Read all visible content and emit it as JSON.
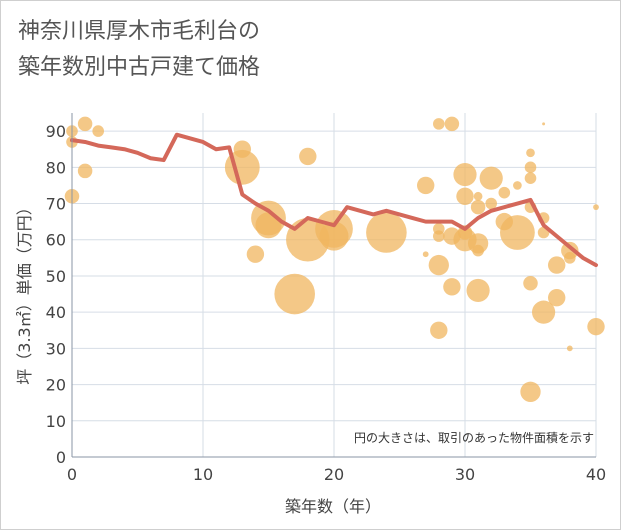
{
  "title_line1": "神奈川県厚木市毛利台の",
  "title_line2": "築年数別中古戸建て価格",
  "chart_data": {
    "type": "scatter",
    "title": "神奈川県厚木市毛利台の築年数別中古戸建て価格",
    "xlabel": "築年数（年）",
    "ylabel": "坪（3.3㎡）単価（万円）",
    "xlim": [
      0,
      40
    ],
    "ylim": [
      0,
      95
    ],
    "xticks": [
      0,
      10,
      20,
      30,
      40
    ],
    "yticks": [
      0,
      10,
      20,
      30,
      40,
      50,
      60,
      70,
      80,
      90
    ],
    "grid": true,
    "note": "円の大きさは、取引のあった物件面積を示す",
    "colors": {
      "bubble": "#f0b55f",
      "line": "#d4685a",
      "grid": "#d6dde6",
      "axis": "#8a96a6"
    },
    "bubbles": [
      {
        "x": 0,
        "y": 90,
        "s": 4
      },
      {
        "x": 0,
        "y": 87,
        "s": 4
      },
      {
        "x": 0,
        "y": 72,
        "s": 5
      },
      {
        "x": 1,
        "y": 92,
        "s": 5
      },
      {
        "x": 1,
        "y": 79,
        "s": 5
      },
      {
        "x": 2,
        "y": 90,
        "s": 4
      },
      {
        "x": 13,
        "y": 85,
        "s": 6
      },
      {
        "x": 13,
        "y": 80,
        "s": 12
      },
      {
        "x": 14,
        "y": 56,
        "s": 6
      },
      {
        "x": 15,
        "y": 66,
        "s": 12
      },
      {
        "x": 15,
        "y": 64,
        "s": 9
      },
      {
        "x": 17,
        "y": 45,
        "s": 14
      },
      {
        "x": 18,
        "y": 83,
        "s": 6
      },
      {
        "x": 18,
        "y": 60,
        "s": 15
      },
      {
        "x": 20,
        "y": 63,
        "s": 13
      },
      {
        "x": 20,
        "y": 61,
        "s": 10
      },
      {
        "x": 24,
        "y": 62,
        "s": 14
      },
      {
        "x": 27,
        "y": 75,
        "s": 6
      },
      {
        "x": 27,
        "y": 56,
        "s": 2
      },
      {
        "x": 28,
        "y": 92,
        "s": 4
      },
      {
        "x": 28,
        "y": 63,
        "s": 4
      },
      {
        "x": 28,
        "y": 61,
        "s": 4
      },
      {
        "x": 28,
        "y": 53,
        "s": 7
      },
      {
        "x": 28,
        "y": 35,
        "s": 6
      },
      {
        "x": 29,
        "y": 92,
        "s": 5
      },
      {
        "x": 29,
        "y": 61,
        "s": 6
      },
      {
        "x": 29,
        "y": 47,
        "s": 6
      },
      {
        "x": 30,
        "y": 78,
        "s": 8
      },
      {
        "x": 30,
        "y": 72,
        "s": 6
      },
      {
        "x": 30,
        "y": 62,
        "s": 5
      },
      {
        "x": 30,
        "y": 60,
        "s": 8
      },
      {
        "x": 31,
        "y": 72,
        "s": 3
      },
      {
        "x": 31,
        "y": 69,
        "s": 5
      },
      {
        "x": 31,
        "y": 59,
        "s": 7
      },
      {
        "x": 31,
        "y": 57,
        "s": 4
      },
      {
        "x": 31,
        "y": 46,
        "s": 8
      },
      {
        "x": 32,
        "y": 77,
        "s": 8
      },
      {
        "x": 32,
        "y": 70,
        "s": 4
      },
      {
        "x": 33,
        "y": 73,
        "s": 4
      },
      {
        "x": 33,
        "y": 65,
        "s": 6
      },
      {
        "x": 34,
        "y": 75,
        "s": 3
      },
      {
        "x": 34,
        "y": 62,
        "s": 12
      },
      {
        "x": 35,
        "y": 84,
        "s": 3
      },
      {
        "x": 35,
        "y": 80,
        "s": 4
      },
      {
        "x": 35,
        "y": 77,
        "s": 4
      },
      {
        "x": 35,
        "y": 69,
        "s": 4
      },
      {
        "x": 35,
        "y": 48,
        "s": 5
      },
      {
        "x": 35,
        "y": 18,
        "s": 7
      },
      {
        "x": 36,
        "y": 92,
        "s": 1
      },
      {
        "x": 36,
        "y": 66,
        "s": 4
      },
      {
        "x": 36,
        "y": 62,
        "s": 4
      },
      {
        "x": 36,
        "y": 40,
        "s": 8
      },
      {
        "x": 37,
        "y": 53,
        "s": 6
      },
      {
        "x": 37,
        "y": 44,
        "s": 6
      },
      {
        "x": 38,
        "y": 57,
        "s": 6
      },
      {
        "x": 38,
        "y": 55,
        "s": 4
      },
      {
        "x": 38,
        "y": 30,
        "s": 2
      },
      {
        "x": 40,
        "y": 69,
        "s": 2
      },
      {
        "x": 40,
        "y": 36,
        "s": 6
      }
    ],
    "trend": {
      "x": [
        0,
        1,
        2,
        3,
        4,
        5,
        6,
        7,
        8,
        9,
        10,
        11,
        12,
        13,
        14,
        15,
        16,
        17,
        18,
        19,
        20,
        21,
        22,
        23,
        24,
        25,
        26,
        27,
        28,
        29,
        30,
        31,
        32,
        33,
        34,
        35,
        36,
        37,
        38,
        39,
        40
      ],
      "y": [
        87.5,
        87,
        86,
        85.5,
        85,
        84,
        82.5,
        82,
        89,
        88,
        87,
        85,
        85.5,
        72.5,
        70,
        68,
        65,
        63,
        66,
        65,
        64,
        69,
        68,
        67,
        68,
        67,
        66,
        65,
        65,
        65,
        63,
        66,
        68,
        69,
        70,
        71,
        64,
        61,
        58,
        55,
        53
      ]
    }
  }
}
